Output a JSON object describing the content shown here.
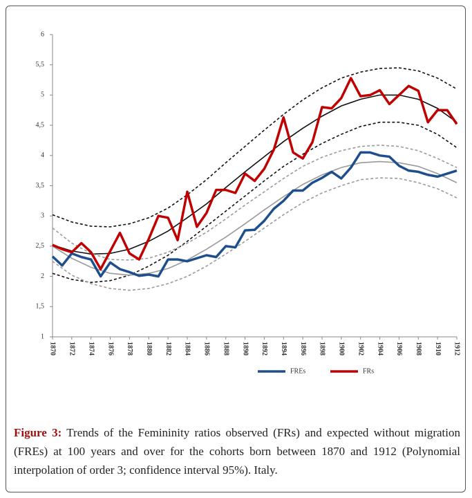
{
  "chart_data": {
    "type": "line",
    "x": [
      1870,
      1871,
      1872,
      1873,
      1874,
      1875,
      1876,
      1877,
      1878,
      1879,
      1880,
      1881,
      1882,
      1883,
      1884,
      1885,
      1886,
      1887,
      1888,
      1889,
      1890,
      1891,
      1892,
      1893,
      1894,
      1895,
      1896,
      1897,
      1898,
      1899,
      1900,
      1901,
      1902,
      1903,
      1904,
      1905,
      1906,
      1907,
      1908,
      1909,
      1910,
      1911,
      1912
    ],
    "series": [
      {
        "name": "FREs",
        "color": "#1f4e8c",
        "values": [
          2.33,
          2.18,
          2.38,
          2.32,
          2.28,
          2.0,
          2.23,
          2.12,
          2.07,
          2.01,
          2.03,
          2.0,
          2.28,
          2.28,
          2.25,
          2.3,
          2.35,
          2.32,
          2.5,
          2.48,
          2.76,
          2.77,
          2.92,
          3.12,
          3.25,
          3.42,
          3.42,
          3.55,
          3.63,
          3.73,
          3.62,
          3.8,
          4.05,
          4.05,
          4.0,
          3.98,
          3.83,
          3.75,
          3.73,
          3.68,
          3.65,
          3.7,
          3.75
        ]
      },
      {
        "name": "FRs",
        "color": "#c00000",
        "values": [
          2.52,
          2.45,
          2.4,
          2.55,
          2.4,
          2.12,
          2.42,
          2.72,
          2.38,
          2.28,
          2.62,
          3.0,
          2.97,
          2.6,
          3.4,
          2.82,
          3.05,
          3.43,
          3.43,
          3.38,
          3.7,
          3.58,
          3.78,
          4.1,
          4.63,
          4.05,
          3.95,
          4.22,
          4.8,
          4.78,
          4.95,
          5.28,
          4.98,
          5.0,
          5.08,
          4.85,
          5.0,
          5.15,
          5.07,
          4.55,
          4.75,
          4.75,
          4.52
        ]
      }
    ],
    "trend_x": [
      1870,
      1872,
      1874,
      1876,
      1878,
      1880,
      1882,
      1884,
      1886,
      1888,
      1890,
      1892,
      1894,
      1896,
      1898,
      1900,
      1902,
      1904,
      1906,
      1908,
      1910,
      1912
    ],
    "trend_lines": [
      {
        "color": "#111111",
        "style": "solid",
        "values": [
          2.52,
          2.42,
          2.37,
          2.38,
          2.45,
          2.58,
          2.75,
          2.97,
          3.2,
          3.47,
          3.73,
          3.98,
          4.23,
          4.45,
          4.65,
          4.82,
          4.93,
          5.0,
          5.0,
          4.93,
          4.78,
          4.55
        ]
      },
      {
        "color": "#111111",
        "style": "dashed",
        "values": [
          3.02,
          2.9,
          2.83,
          2.82,
          2.87,
          2.97,
          3.13,
          3.35,
          3.6,
          3.88,
          4.15,
          4.42,
          4.68,
          4.92,
          5.12,
          5.28,
          5.38,
          5.44,
          5.45,
          5.4,
          5.28,
          5.1
        ]
      },
      {
        "color": "#111111",
        "style": "dashed",
        "values": [
          2.05,
          1.95,
          1.9,
          1.93,
          2.02,
          2.17,
          2.35,
          2.58,
          2.83,
          3.08,
          3.33,
          3.58,
          3.82,
          4.02,
          4.2,
          4.35,
          4.48,
          4.55,
          4.55,
          4.5,
          4.35,
          4.13
        ]
      },
      {
        "color": "#9a9a9a",
        "style": "solid",
        "values": [
          2.5,
          2.3,
          2.15,
          2.05,
          2.02,
          2.05,
          2.13,
          2.27,
          2.45,
          2.65,
          2.87,
          3.1,
          3.32,
          3.52,
          3.68,
          3.8,
          3.88,
          3.9,
          3.88,
          3.82,
          3.7,
          3.55
        ]
      },
      {
        "color": "#9a9a9a",
        "style": "dashed",
        "values": [
          2.8,
          2.55,
          2.38,
          2.28,
          2.27,
          2.3,
          2.4,
          2.55,
          2.73,
          2.95,
          3.18,
          3.4,
          3.62,
          3.82,
          3.97,
          4.08,
          4.15,
          4.17,
          4.15,
          4.08,
          3.95,
          3.8
        ]
      },
      {
        "color": "#9a9a9a",
        "style": "dashed",
        "values": [
          2.25,
          2.02,
          1.88,
          1.8,
          1.77,
          1.8,
          1.88,
          2.0,
          2.17,
          2.37,
          2.58,
          2.8,
          3.02,
          3.22,
          3.38,
          3.5,
          3.6,
          3.63,
          3.62,
          3.55,
          3.45,
          3.3
        ]
      }
    ],
    "xlim": [
      1870,
      1912
    ],
    "xticks": [
      1870,
      1872,
      1874,
      1876,
      1878,
      1880,
      1882,
      1884,
      1886,
      1888,
      1890,
      1892,
      1894,
      1896,
      1898,
      1900,
      1902,
      1904,
      1906,
      1908,
      1910,
      1912
    ],
    "ylim": [
      1,
      6
    ],
    "yticks": [
      1,
      {
        "value": 1.5,
        "label": "1,5"
      },
      2,
      {
        "value": 2.5,
        "label": "2,5"
      },
      3,
      {
        "value": 3.5,
        "label": "3,5"
      },
      4,
      {
        "value": 4.5,
        "label": "4,5"
      },
      5,
      {
        "value": 5.5,
        "label": "5,5"
      },
      6
    ],
    "grid": false,
    "legend": "bottom"
  },
  "caption": {
    "label": "Figure 3:",
    "text": "Trends of the Femininity ratios observed (FRs) and expected without migration (FREs) at 100 years and over for the cohorts born between 1870 and 1912 (Polynomial interpolation of order 3; confidence interval 95%). Italy."
  }
}
